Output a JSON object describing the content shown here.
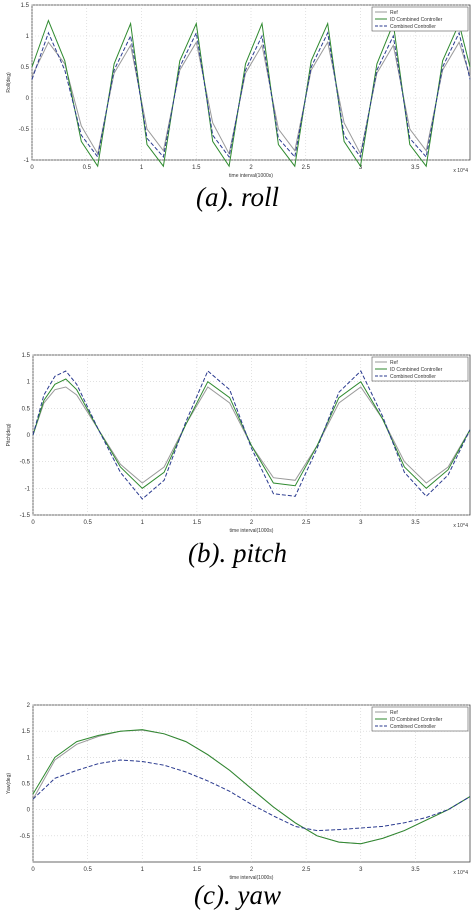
{
  "panels": [
    {
      "caption": "(a). roll",
      "chart_data": {
        "type": "line",
        "ylabel": "Roll(deg)",
        "xlabel": "time interval(1000s)",
        "x_exponent": "x 10^4",
        "xlim": [
          0,
          4
        ],
        "ylim": [
          -1,
          1.5
        ],
        "xticks": [
          0,
          0.5,
          1,
          1.5,
          2,
          2.5,
          3,
          3.5
        ],
        "xtick_labels": [
          "0",
          "0.5",
          "1",
          "1.5",
          "2",
          "2.5",
          "3",
          "3.5"
        ],
        "yticks": [
          -1,
          -0.5,
          0,
          0.5,
          1,
          1.5
        ],
        "ytick_labels": [
          "-1",
          "-0.5",
          "0",
          "0.5",
          "1",
          "1.5"
        ],
        "grid": true,
        "legend_position": "top-right",
        "series": [
          {
            "name": "Ref",
            "color": "#9a9a9a",
            "dash": "solid",
            "x": [
              0,
              0.15,
              0.3,
              0.45,
              0.6,
              0.75,
              0.9,
              1.05,
              1.2,
              1.35,
              1.5,
              1.65,
              1.8,
              1.95,
              2.1,
              2.25,
              2.4,
              2.55,
              2.7,
              2.85,
              3.0,
              3.15,
              3.3,
              3.45,
              3.6,
              3.75,
              3.9,
              4.0
            ],
            "y": [
              0.35,
              0.9,
              0.55,
              -0.45,
              -0.9,
              0.4,
              0.85,
              -0.5,
              -0.85,
              0.45,
              0.9,
              -0.4,
              -0.9,
              0.4,
              0.85,
              -0.5,
              -0.85,
              0.45,
              0.9,
              -0.4,
              -0.9,
              0.4,
              0.85,
              -0.5,
              -0.85,
              0.45,
              0.9,
              0.35
            ]
          },
          {
            "name": "ID Combined Controller",
            "color": "#2f8a2f",
            "dash": "solid",
            "x": [
              0,
              0.15,
              0.3,
              0.45,
              0.6,
              0.75,
              0.9,
              1.05,
              1.2,
              1.35,
              1.5,
              1.65,
              1.8,
              1.95,
              2.1,
              2.25,
              2.4,
              2.55,
              2.7,
              2.85,
              3.0,
              3.15,
              3.3,
              3.45,
              3.6,
              3.75,
              3.9,
              4.0
            ],
            "y": [
              0.5,
              1.25,
              0.6,
              -0.7,
              -1.1,
              0.55,
              1.2,
              -0.75,
              -1.1,
              0.6,
              1.2,
              -0.7,
              -1.1,
              0.55,
              1.2,
              -0.75,
              -1.1,
              0.6,
              1.2,
              -0.7,
              -1.1,
              0.55,
              1.2,
              -0.75,
              -1.1,
              0.6,
              1.2,
              0.5
            ]
          },
          {
            "name": "Combined Controller",
            "color": "#2a3a8f",
            "dash": "dashed",
            "x": [
              0,
              0.15,
              0.3,
              0.45,
              0.6,
              0.75,
              0.9,
              1.05,
              1.2,
              1.35,
              1.5,
              1.65,
              1.8,
              1.95,
              2.1,
              2.25,
              2.4,
              2.55,
              2.7,
              2.85,
              3.0,
              3.15,
              3.3,
              3.45,
              3.6,
              3.75,
              3.9,
              4.0
            ],
            "y": [
              0.3,
              1.05,
              0.45,
              -0.6,
              -0.95,
              0.45,
              1.0,
              -0.65,
              -0.95,
              0.5,
              1.05,
              -0.6,
              -0.95,
              0.45,
              1.0,
              -0.65,
              -0.95,
              0.5,
              1.05,
              -0.6,
              -0.95,
              0.45,
              1.0,
              -0.65,
              -0.95,
              0.5,
              1.05,
              0.3
            ]
          }
        ]
      }
    },
    {
      "caption": "(b). pitch",
      "chart_data": {
        "type": "line",
        "ylabel": "Pitch(deg)",
        "xlabel": "time interval(1000s)",
        "x_exponent": "x 10^4",
        "xlim": [
          0,
          4
        ],
        "ylim": [
          -1.5,
          1.5
        ],
        "xticks": [
          0,
          0.5,
          1,
          1.5,
          2,
          2.5,
          3,
          3.5
        ],
        "xtick_labels": [
          "0",
          "0.5",
          "1",
          "1.5",
          "2",
          "2.5",
          "3",
          "3.5"
        ],
        "yticks": [
          -1.5,
          -1,
          -0.5,
          0,
          0.5,
          1,
          1.5
        ],
        "ytick_labels": [
          "-1.5",
          "-1",
          "-0.5",
          "0",
          "0.5",
          "1",
          "1.5"
        ],
        "grid": true,
        "legend_position": "top-right",
        "series": [
          {
            "name": "Ref",
            "color": "#9a9a9a",
            "dash": "solid",
            "x": [
              0,
              0.1,
              0.2,
              0.3,
              0.4,
              0.6,
              0.8,
              1.0,
              1.2,
              1.4,
              1.6,
              1.8,
              2.0,
              2.2,
              2.4,
              2.6,
              2.8,
              3.0,
              3.2,
              3.4,
              3.6,
              3.8,
              4.0
            ],
            "y": [
              0.0,
              0.6,
              0.85,
              0.9,
              0.75,
              0.1,
              -0.55,
              -0.9,
              -0.6,
              0.2,
              0.9,
              0.6,
              -0.2,
              -0.8,
              -0.85,
              -0.2,
              0.6,
              0.9,
              0.3,
              -0.5,
              -0.9,
              -0.6,
              0.1
            ]
          },
          {
            "name": "ID Combined Controller",
            "color": "#2f8a2f",
            "dash": "solid",
            "x": [
              0,
              0.1,
              0.2,
              0.3,
              0.4,
              0.6,
              0.8,
              1.0,
              1.2,
              1.4,
              1.6,
              1.8,
              2.0,
              2.2,
              2.4,
              2.6,
              2.8,
              3.0,
              3.2,
              3.4,
              3.6,
              3.8,
              4.0
            ],
            "y": [
              0.0,
              0.65,
              0.95,
              1.05,
              0.85,
              0.1,
              -0.6,
              -1.0,
              -0.7,
              0.2,
              1.0,
              0.7,
              -0.2,
              -0.9,
              -0.95,
              -0.2,
              0.7,
              1.0,
              0.3,
              -0.6,
              -1.0,
              -0.65,
              0.1
            ]
          },
          {
            "name": "Combined Controller",
            "color": "#2a3a8f",
            "dash": "dashed",
            "x": [
              0,
              0.1,
              0.2,
              0.3,
              0.4,
              0.6,
              0.8,
              1.0,
              1.2,
              1.4,
              1.6,
              1.8,
              2.0,
              2.2,
              2.4,
              2.6,
              2.8,
              3.0,
              3.2,
              3.4,
              3.6,
              3.8,
              4.0
            ],
            "y": [
              0.0,
              0.75,
              1.1,
              1.2,
              0.95,
              0.1,
              -0.7,
              -1.2,
              -0.85,
              0.25,
              1.2,
              0.85,
              -0.25,
              -1.1,
              -1.15,
              -0.25,
              0.8,
              1.2,
              0.35,
              -0.7,
              -1.15,
              -0.75,
              0.1
            ]
          }
        ]
      }
    },
    {
      "caption": "(c). yaw",
      "chart_data": {
        "type": "line",
        "ylabel": "Yaw(deg)",
        "xlabel": "time interval(1000s)",
        "x_exponent": "x 10^4",
        "xlim": [
          0,
          4
        ],
        "ylim": [
          -1,
          2
        ],
        "xticks": [
          0,
          0.5,
          1,
          1.5,
          2,
          2.5,
          3,
          3.5
        ],
        "xtick_labels": [
          "0",
          "0.5",
          "1",
          "1.5",
          "2",
          "2.5",
          "3",
          "3.5"
        ],
        "yticks": [
          -0.5,
          0,
          0.5,
          1,
          1.5,
          2
        ],
        "ytick_labels": [
          "-0.5",
          "0",
          "0.5",
          "1",
          "1.5",
          "2"
        ],
        "grid": true,
        "legend_position": "top-right",
        "series": [
          {
            "name": "Ref",
            "color": "#9a9a9a",
            "dash": "solid",
            "x": [
              0,
              0.2,
              0.4,
              0.6,
              0.8,
              1.0,
              1.2,
              1.4,
              1.6,
              1.8,
              2.0,
              2.2,
              2.4,
              2.6,
              2.8,
              3.0,
              3.2,
              3.4,
              3.6,
              3.8,
              4.0
            ],
            "y": [
              0.2,
              0.95,
              1.25,
              1.4,
              1.5,
              1.52,
              1.45,
              1.3,
              1.05,
              0.75,
              0.4,
              0.05,
              -0.25,
              -0.5,
              -0.62,
              -0.65,
              -0.55,
              -0.4,
              -0.2,
              0.0,
              0.25
            ]
          },
          {
            "name": "ID Combined Controller",
            "color": "#2f8a2f",
            "dash": "solid",
            "x": [
              0,
              0.2,
              0.4,
              0.6,
              0.8,
              1.0,
              1.2,
              1.4,
              1.6,
              1.8,
              2.0,
              2.2,
              2.4,
              2.6,
              2.8,
              3.0,
              3.2,
              3.4,
              3.6,
              3.8,
              4.0
            ],
            "y": [
              0.3,
              1.0,
              1.3,
              1.42,
              1.5,
              1.53,
              1.45,
              1.3,
              1.05,
              0.75,
              0.4,
              0.05,
              -0.25,
              -0.5,
              -0.62,
              -0.65,
              -0.55,
              -0.4,
              -0.2,
              0.0,
              0.25
            ]
          },
          {
            "name": "Combined Controller",
            "color": "#2a3a8f",
            "dash": "dashed",
            "x": [
              0,
              0.2,
              0.4,
              0.6,
              0.8,
              1.0,
              1.2,
              1.4,
              1.6,
              1.8,
              2.0,
              2.2,
              2.4,
              2.6,
              2.8,
              3.0,
              3.2,
              3.4,
              3.6,
              3.8,
              4.0
            ],
            "y": [
              0.2,
              0.6,
              0.75,
              0.88,
              0.95,
              0.92,
              0.85,
              0.72,
              0.55,
              0.35,
              0.1,
              -0.12,
              -0.32,
              -0.4,
              -0.38,
              -0.35,
              -0.32,
              -0.25,
              -0.15,
              0.0,
              0.25
            ]
          }
        ]
      }
    }
  ]
}
